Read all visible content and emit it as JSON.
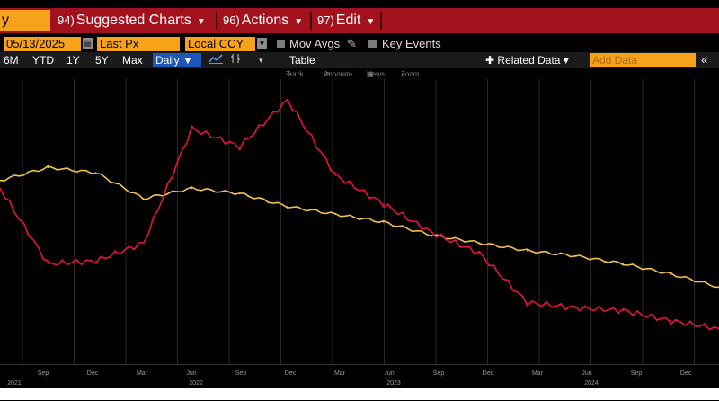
{
  "header": {
    "ticker_fragment": "y",
    "menu": [
      {
        "num": "94)",
        "label": "Suggested Charts"
      },
      {
        "num": "96)",
        "label": "Actions"
      },
      {
        "num": "97)",
        "label": "Edit"
      }
    ]
  },
  "controls": {
    "date": "05/13/2025",
    "price_field": "Last Px",
    "currency": "Local CCY",
    "mov_avgs_label": "Mov Avgs",
    "key_events_label": "Key Events"
  },
  "ranges": [
    "6M",
    "YTD",
    "1Y",
    "5Y",
    "Max"
  ],
  "frequency": "Daily",
  "table_label": "Table",
  "related_data": "Related Data",
  "add_data_placeholder": "Add Data",
  "tools": [
    "Track",
    "Annotate",
    "News",
    "Zoom"
  ],
  "chart_data": {
    "type": "line",
    "x": [
      "2021-06",
      "2021-09",
      "2021-12",
      "2022-03",
      "2022-06",
      "2022-09",
      "2022-12",
      "2023-03",
      "2023-06",
      "2023-09",
      "2023-12",
      "2024-03",
      "2024-06",
      "2024-09",
      "2024-12",
      "2025-05"
    ],
    "series": [
      {
        "color": "#f2c14e",
        "values": [
          71,
          76,
          74,
          64,
          68,
          66,
          61,
          58,
          55,
          50,
          47,
          44,
          42,
          39,
          35,
          30
        ]
      },
      {
        "color": "#e8123c",
        "values": [
          68,
          39,
          40,
          47,
          91,
          84,
          102,
          73,
          62,
          51,
          43,
          24,
          22,
          21,
          17,
          14
        ]
      }
    ],
    "ylim": [
      0,
      110
    ],
    "grid": true,
    "x_ticks": [
      "Sep",
      "Dec",
      "Mar",
      "Jun",
      "Sep",
      "Dec",
      "Mar",
      "Jun",
      "Sep",
      "Dec",
      "Mar",
      "Jun",
      "Sep",
      "Dec"
    ],
    "years": [
      "2021",
      "2022",
      "2023",
      "2024"
    ]
  },
  "colors": {
    "menu_bar": "#a3111c",
    "amber": "#f6a31b",
    "daily_button": "#1d56b9",
    "line_yellow": "#f2c14e",
    "line_red": "#e8123c"
  }
}
